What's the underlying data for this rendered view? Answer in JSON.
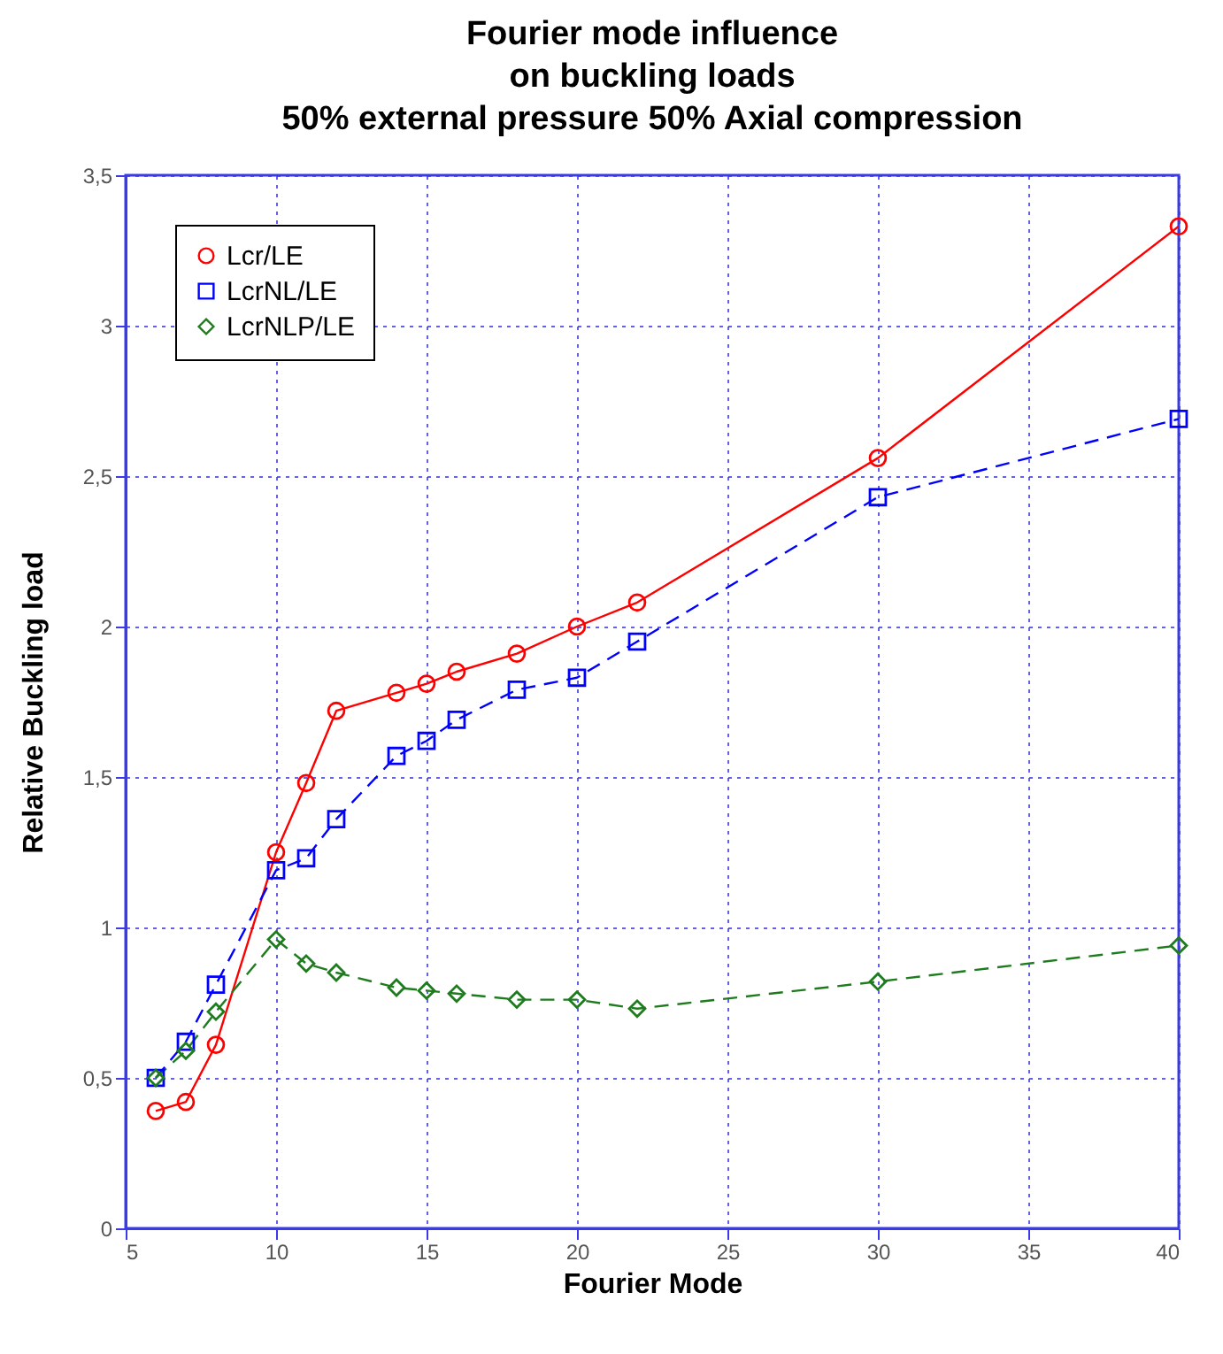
{
  "chart_data": {
    "type": "line",
    "title": "Fourier mode influence\non buckling loads\n50% external pressure 50% Axial compression",
    "xlabel": "Fourier Mode",
    "ylabel": "Relative Buckling load",
    "x": [
      6,
      7,
      8,
      10,
      11,
      12,
      14,
      15,
      16,
      18,
      20,
      22,
      30,
      40
    ],
    "series": [
      {
        "name": "Lcr/LE",
        "color": "#ff0000",
        "marker": "circle",
        "line_style": "solid",
        "values": [
          0.39,
          0.42,
          0.61,
          1.25,
          1.48,
          1.72,
          1.78,
          1.81,
          1.85,
          1.91,
          2.0,
          2.08,
          2.56,
          3.33
        ]
      },
      {
        "name": "LcrNL/LE",
        "color": "#0000ff",
        "marker": "square",
        "line_style": "dashed",
        "values": [
          0.5,
          0.62,
          0.81,
          1.19,
          1.23,
          1.36,
          1.57,
          1.62,
          1.69,
          1.79,
          1.83,
          1.95,
          2.43,
          2.69
        ]
      },
      {
        "name": "LcrNLP/LE",
        "color": "#1e7b1e",
        "marker": "diamond",
        "line_style": "dashed",
        "values": [
          0.5,
          0.59,
          0.72,
          0.96,
          0.88,
          0.85,
          0.8,
          0.79,
          0.78,
          0.76,
          0.76,
          0.73,
          0.82,
          0.94
        ]
      }
    ],
    "xlim": [
      5,
      40
    ],
    "xticks": [
      5,
      10,
      15,
      20,
      25,
      30,
      35,
      40
    ],
    "ylim": [
      0,
      3.5
    ],
    "yticks": [
      0,
      {
        "value": 0.5,
        "label": "0,5"
      },
      1,
      {
        "value": 1.5,
        "label": "1,5"
      },
      2,
      {
        "value": 2.5,
        "label": "2,5"
      },
      3,
      {
        "value": 3.5,
        "label": "3,5"
      }
    ],
    "grid": true,
    "legend": "top left"
  }
}
